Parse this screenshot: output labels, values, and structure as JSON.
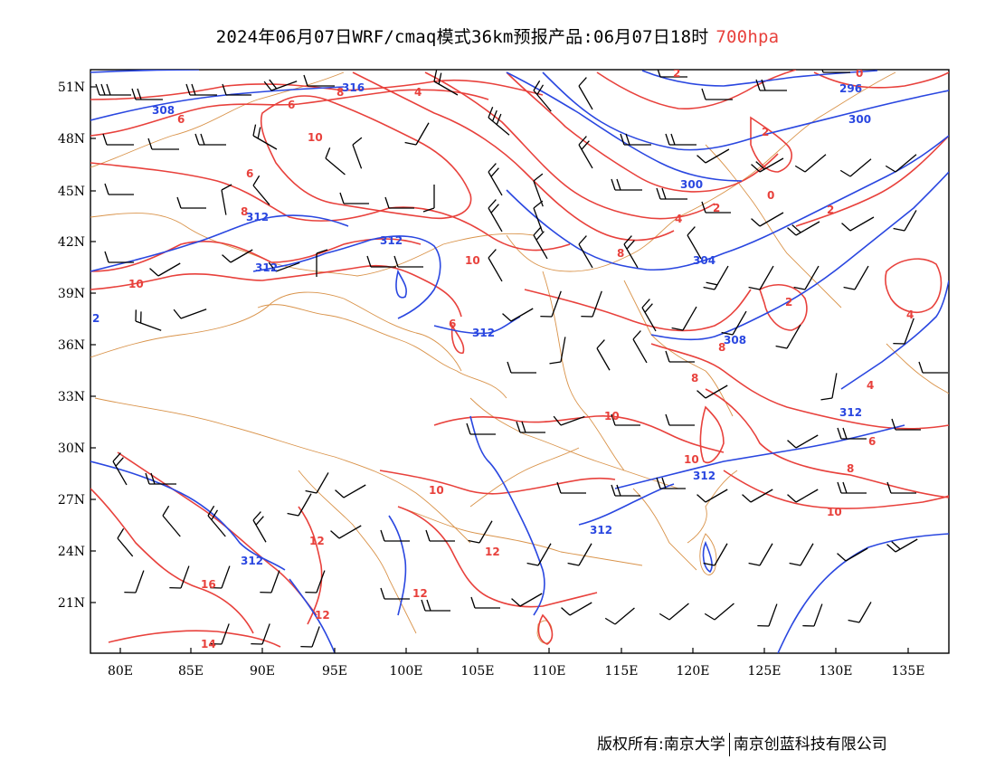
{
  "title": {
    "text": "2024年06月07日WRF/cmaq模式36km预报产品:06月07日18时",
    "level": "700hpa"
  },
  "axes": {
    "lat_labels": [
      "51N",
      "48N",
      "45N",
      "42N",
      "39N",
      "36N",
      "33N",
      "30N",
      "27N",
      "24N",
      "21N"
    ],
    "lon_labels": [
      "80E",
      "85E",
      "90E",
      "95E",
      "100E",
      "105E",
      "110E",
      "115E",
      "120E",
      "125E",
      "130E",
      "135E"
    ]
  },
  "contour_labels_red": [
    "2",
    "0",
    "4",
    "6",
    "10",
    "8",
    "6",
    "8",
    "10",
    "10",
    "8",
    "4",
    "2",
    "0",
    "2",
    "8",
    "6",
    "8",
    "2",
    "4",
    "6",
    "4",
    "10",
    "10",
    "8",
    "10",
    "12",
    "12",
    "12",
    "16",
    "12",
    "14",
    "6",
    "10",
    "2"
  ],
  "contour_labels_blue": [
    "308",
    "316",
    "312",
    "312",
    "312",
    "296",
    "300",
    "300",
    "304",
    "308",
    "312",
    "312",
    "312",
    "312",
    "312",
    "2"
  ],
  "colors": {
    "temperature": "#e8413c",
    "geopotential": "#2a47e0",
    "boundaries": "#d9934a",
    "wind_barbs": "#000000"
  },
  "footer": {
    "left": "版权所有:南京大学",
    "right": "南京创蓝科技有限公司"
  }
}
